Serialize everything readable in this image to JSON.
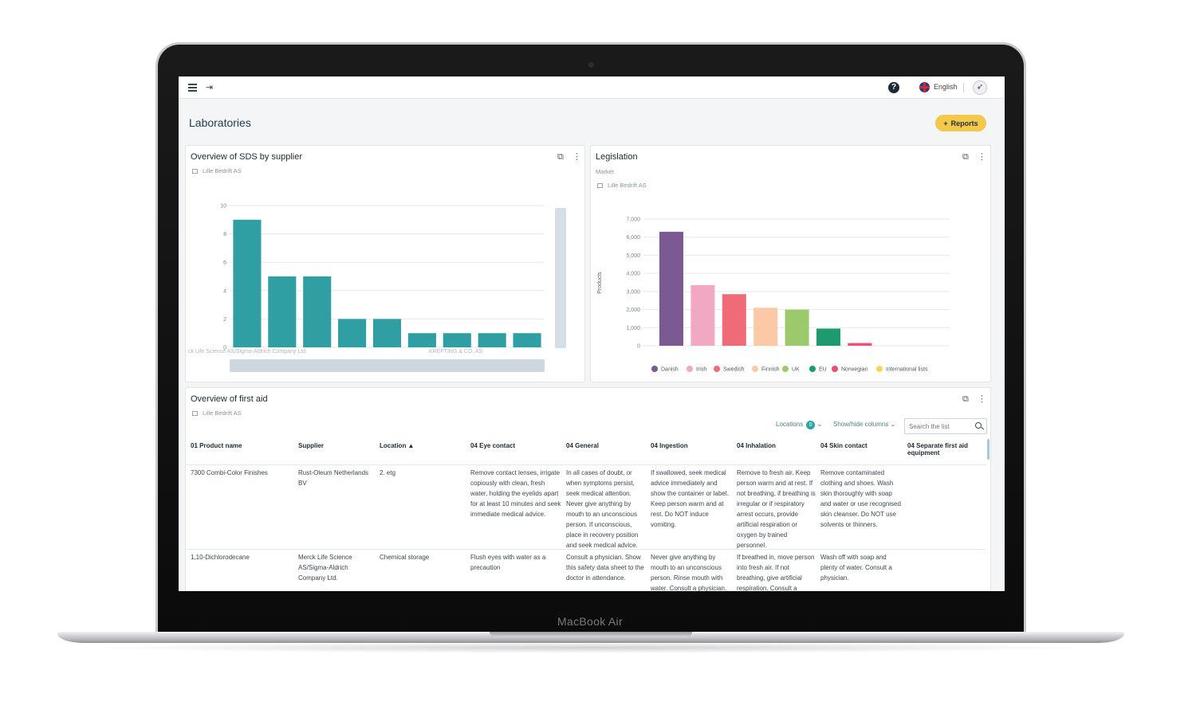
{
  "device": {
    "brand_label": "MacBook Air"
  },
  "topbar": {
    "menu_icon": "hamburger-icon",
    "logout_icon": "logout-icon",
    "help_icon": "help-icon",
    "language": "English",
    "launch_icon": "rocket-icon"
  },
  "page": {
    "title": "Laboratories",
    "reports_button": "Reports",
    "reports_icon": "plus-icon"
  },
  "sds_chart": {
    "title": "Overview of SDS by supplier",
    "subtitle": "Lille Bedrift AS",
    "left_label": "ck Life Science AS/Sigma-Aldrich Company Ltd.",
    "right_label": "KREFTING & CO. AS"
  },
  "legislation_chart": {
    "title": "Legislation",
    "subtitle1": "Market",
    "subtitle2": "Lille Bedrift AS"
  },
  "first_aid": {
    "title": "Overview of first aid",
    "subtitle": "Lille Bedrift AS",
    "locations_label": "Locations",
    "locations_count": "0",
    "show_hide_label": "Show/hide columns",
    "search_placeholder": "Search the list",
    "columns": [
      "01 Product name",
      "Supplier",
      "Location ▲",
      "04 Eye contact",
      "04 General",
      "04 Ingestion",
      "04 Inhalation",
      "04 Skin contact",
      "04 Separate first aid equipment"
    ],
    "rows": [
      [
        "7300 Combi-Color Finishes",
        "Rust-Oleum Netherlands BV",
        "2. etg",
        "Remove contact lenses, irrigate copiously with clean, fresh water, holding the eyelids apart for at least 10 minutes and seek immediate medical advice.",
        "In all cases of doubt, or when symptoms persist, seek medical attention. Never give anything by mouth to an unconscious person. If unconscious, place in recovery position and seek medical advice.",
        "If swallowed, seek medical advice immediately and show the container or label. Keep person warm and at rest. Do NOT induce vomiting.",
        "Remove to fresh air. Keep person warm and at rest. If not breathing, if breathing is irregular or if respiratory arrest occurs, provide artificial respiration or oxygen by trained personnel.",
        "Remove contaminated clothing and shoes. Wash skin thoroughly with soap and water or use recognised skin cleanser. Do NOT use solvents or thinners.",
        ""
      ],
      [
        "1,10-Dichlorodecane",
        "Merck Life Science AS/Sigma-Aldrich Company Ltd.",
        "Chemical storage",
        "Flush eyes with water as a precaution",
        "Consult a physician. Show this safety data sheet to the doctor in attendance.",
        "Never give anything by mouth to an unconscious person. Rinse mouth with water. Consult a physician.",
        "If breathed in, move person into fresh air. If not breathing, give artificial respiration. Consult a",
        "Wash off with soap and plenty of water. Consult a physician.",
        ""
      ]
    ]
  },
  "chart_data": [
    {
      "type": "bar",
      "title": "Overview of SDS by supplier",
      "categories": [
        "",
        "",
        "",
        "",
        "",
        "",
        "",
        "",
        ""
      ],
      "values": [
        9,
        5,
        5,
        2,
        2,
        1,
        1,
        1,
        1
      ],
      "yticks": [
        "0",
        "2",
        "4",
        "6",
        "8",
        "10"
      ],
      "ylim": [
        0,
        10
      ],
      "colors": [
        "#2f9fa4"
      ],
      "grid": true
    },
    {
      "type": "bar",
      "title": "Legislation",
      "ylabel": "Products",
      "categories": [
        "Danish",
        "Irish",
        "Swedish",
        "Finnish",
        "UK",
        "EU",
        "Norwegian",
        "International lists"
      ],
      "values": [
        6300,
        3350,
        2850,
        2100,
        2000,
        950,
        150,
        0
      ],
      "yticks": [
        "0",
        "1,000",
        "2,000",
        "3,000",
        "4,000",
        "5,000",
        "6,000",
        "7,000"
      ],
      "ylim": [
        0,
        7000
      ],
      "colors": [
        "#7b5a93",
        "#f2a7c2",
        "#f06b78",
        "#fbc9a6",
        "#9cc96b",
        "#1e9a6f",
        "#ec4f73",
        "#f8d55a"
      ],
      "legend": "bottom",
      "grid": true
    }
  ]
}
